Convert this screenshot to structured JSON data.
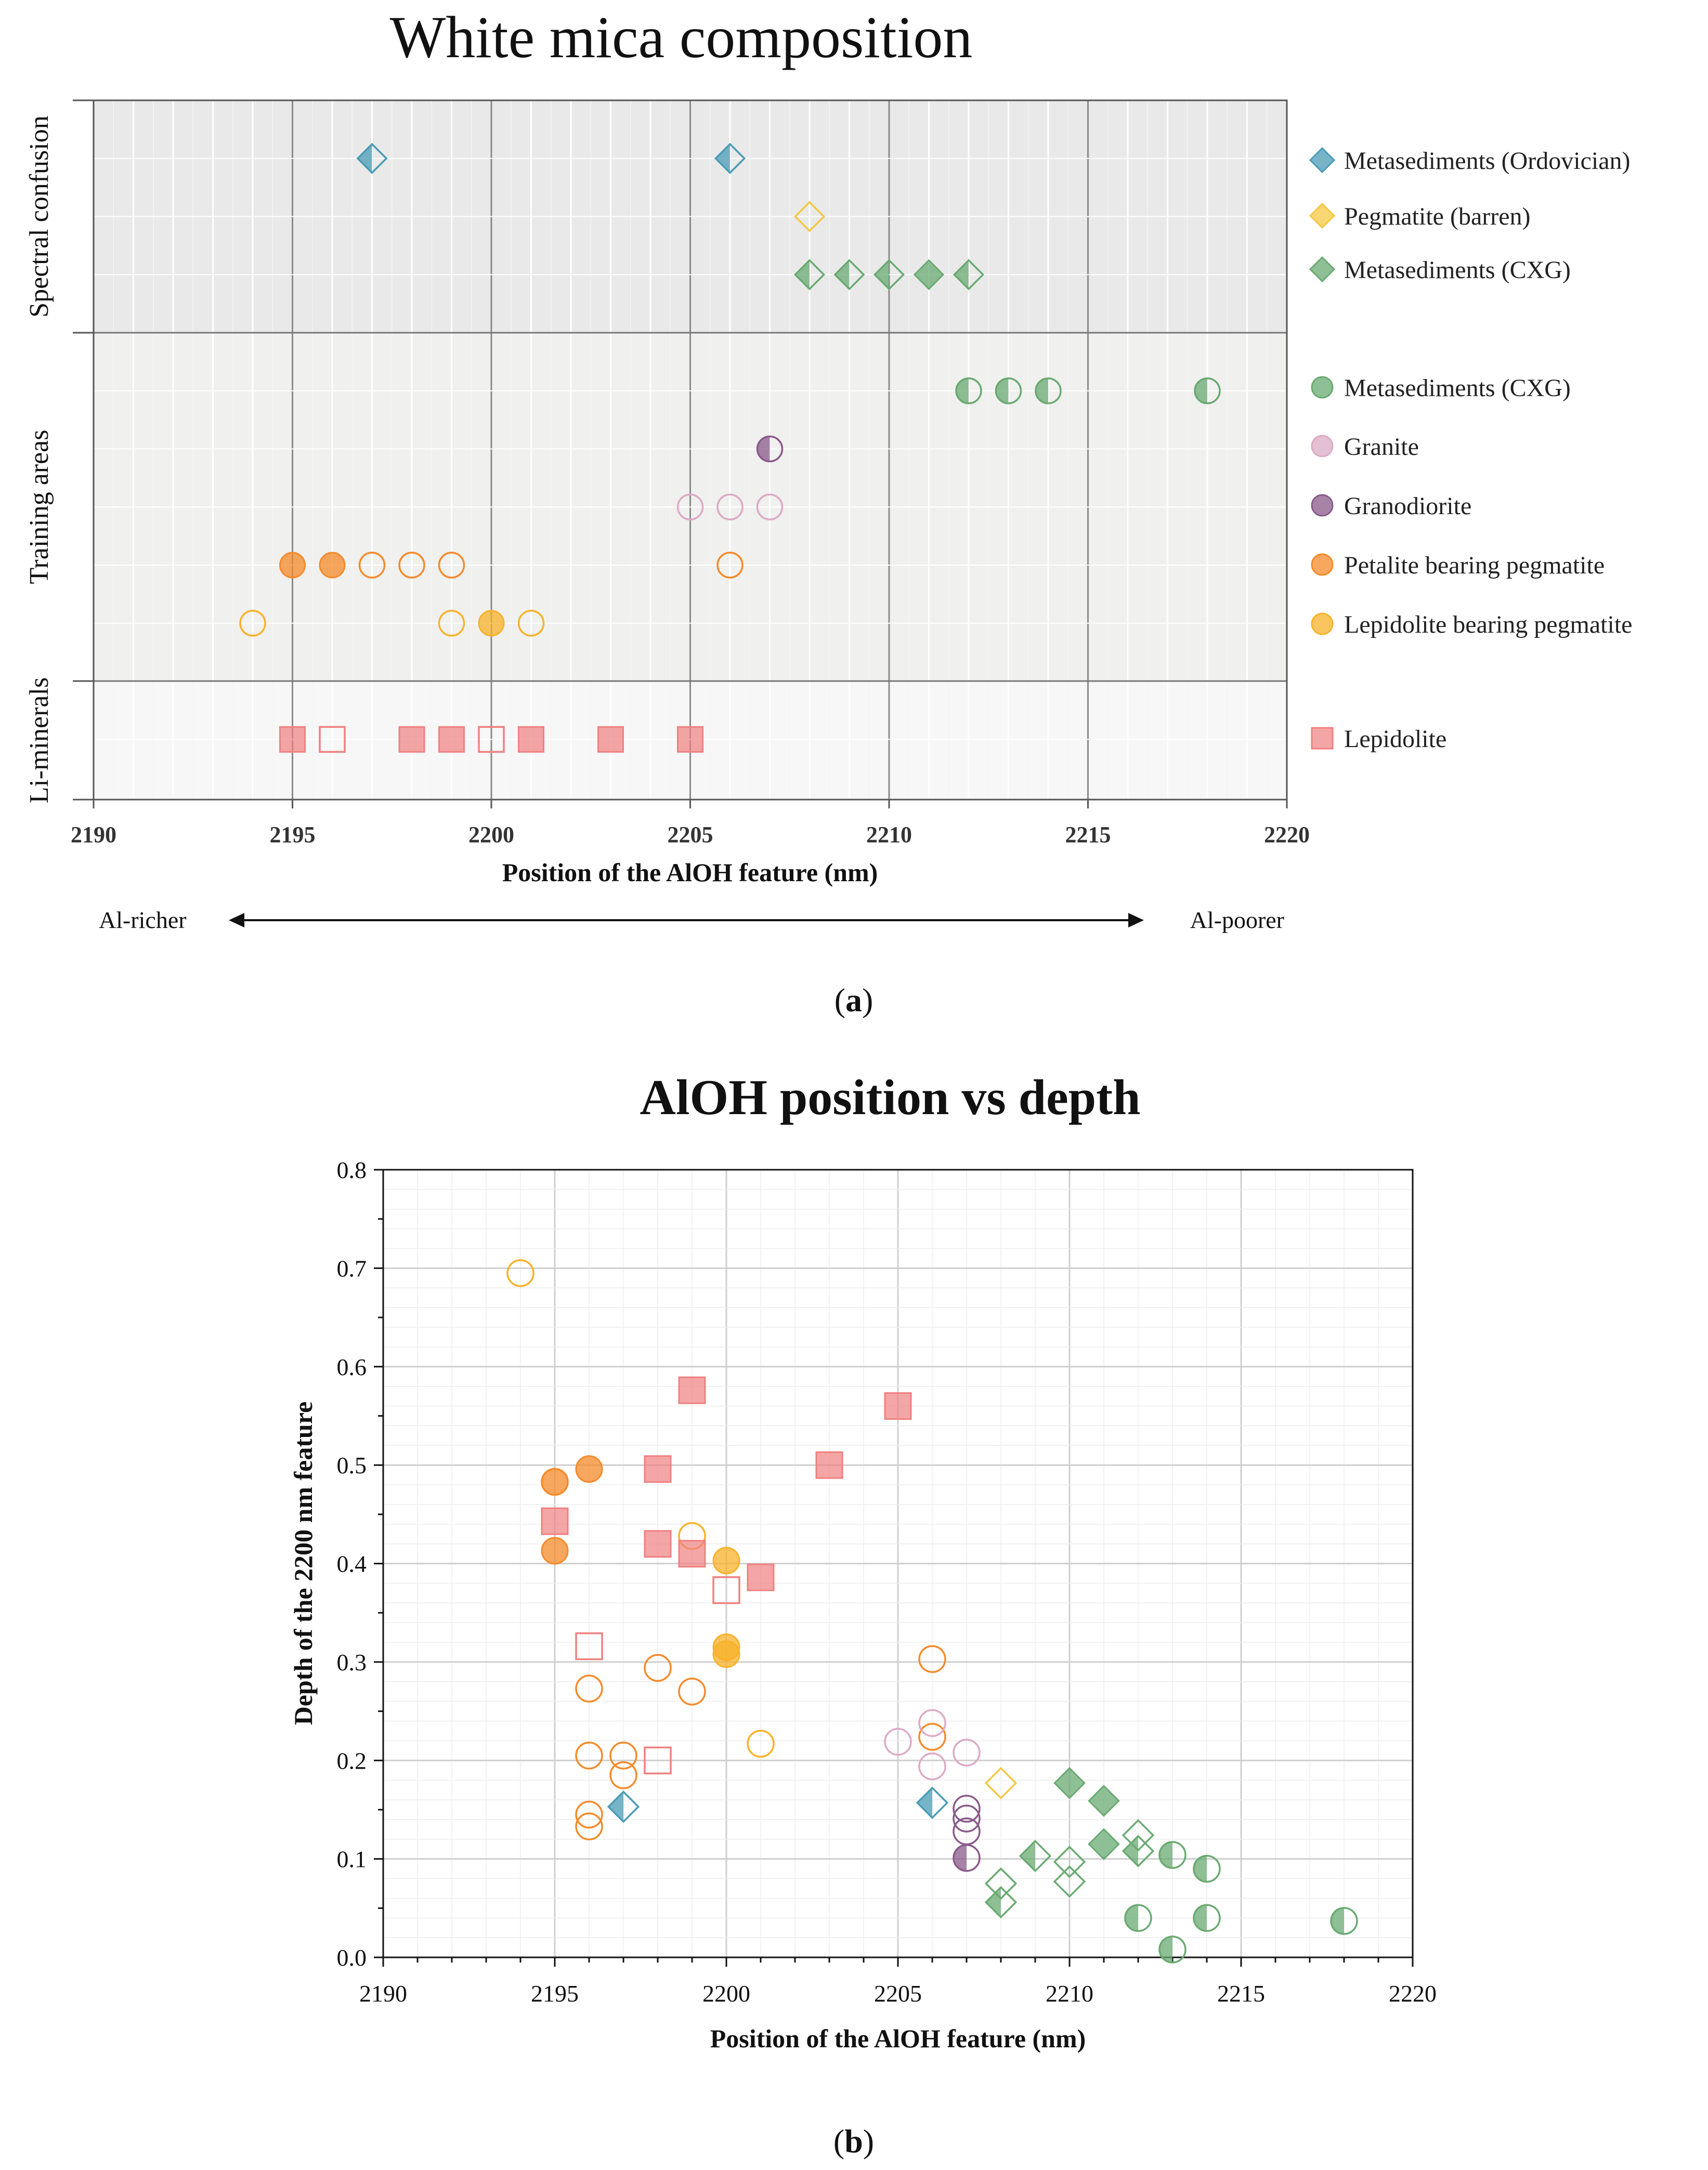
{
  "panel_a": {
    "title": "White mica composition",
    "panel_label_prefix": "(",
    "panel_label": "a",
    "panel_label_suffix": ")",
    "arrow_left": "Al-richer",
    "arrow_right": "Al-poorer"
  },
  "panel_b": {
    "title": "AlOH position vs depth",
    "panel_label_prefix": "(",
    "panel_label": "b",
    "panel_label_suffix": ")"
  },
  "styles": {
    "Metasediments (Ordovician)": {
      "color": "#4a9bb5",
      "marker": "diamond"
    },
    "Pegmatite (barren)": {
      "color": "#f5c842",
      "marker": "diamond"
    },
    "Metasediments (CXG) diamond": {
      "color": "#6aaa72",
      "marker": "diamond"
    },
    "Metasediments (CXG) circle": {
      "color": "#6aaa72",
      "marker": "circle"
    },
    "Granite": {
      "color": "#dcaac4",
      "marker": "circle"
    },
    "Granodiorite": {
      "color": "#8a5a8a",
      "marker": "circle"
    },
    "Petalite bearing pegmatite": {
      "color": "#f58a2a",
      "marker": "circle"
    },
    "Lepidolite bearing pegmatite": {
      "color": "#f8b22a",
      "marker": "circle"
    },
    "Lepidolite": {
      "color": "#f08080",
      "marker": "square"
    }
  },
  "chart_data": [
    {
      "type": "scatter",
      "title": "White mica composition",
      "xlabel": "Position of the AlOH feature (nm)",
      "ylabel_groups": [
        "Spectral confusion",
        "Training areas",
        "Li-minerals"
      ],
      "xlim": [
        2190,
        2220
      ],
      "xticks": [
        "2190",
        "2195",
        "2200",
        "2205",
        "2210",
        "2215",
        "2220"
      ],
      "legend": [
        {
          "label": "Metasediments (Ordovician)",
          "style": "Metasediments (Ordovician)"
        },
        {
          "label": "Pegmatite (barren)",
          "style": "Pegmatite (barren)"
        },
        {
          "label": "Metasediments (CXG)",
          "style": "Metasediments (CXG) diamond"
        },
        {
          "label": "Metasediments (CXG)",
          "style": "Metasediments (CXG) circle"
        },
        {
          "label": "Granite",
          "style": "Granite"
        },
        {
          "label": "Granodiorite",
          "style": "Granodiorite"
        },
        {
          "label": "Petalite bearing pegmatite",
          "style": "Petalite bearing pegmatite"
        },
        {
          "label": "Lepidolite bearing pegmatite",
          "style": "Lepidolite bearing pegmatite"
        },
        {
          "label": "Lepidolite",
          "style": "Lepidolite"
        }
      ],
      "series": [
        {
          "name": "Metasediments (Ordovician)",
          "style": "Metasediments (Ordovician)",
          "row": 1,
          "points": [
            {
              "x": 2197,
              "fill": "half"
            },
            {
              "x": 2206,
              "fill": "half"
            }
          ]
        },
        {
          "name": "Pegmatite (barren)",
          "style": "Pegmatite (barren)",
          "row": 2,
          "points": [
            {
              "x": 2208,
              "fill": "open"
            }
          ]
        },
        {
          "name": "Metasediments (CXG)",
          "style": "Metasediments (CXG) diamond",
          "row": 3,
          "points": [
            {
              "x": 2208,
              "fill": "half"
            },
            {
              "x": 2209,
              "fill": "half"
            },
            {
              "x": 2210,
              "fill": "half"
            },
            {
              "x": 2211,
              "fill": "full"
            },
            {
              "x": 2212,
              "fill": "half"
            }
          ]
        },
        {
          "name": "Metasediments (CXG)",
          "style": "Metasediments (CXG) circle",
          "row": 5,
          "points": [
            {
              "x": 2212,
              "fill": "half"
            },
            {
              "x": 2213,
              "fill": "half"
            },
            {
              "x": 2214,
              "fill": "half"
            },
            {
              "x": 2218,
              "fill": "half"
            }
          ]
        },
        {
          "name": "Granodiorite",
          "style": "Granodiorite",
          "row": 6,
          "points": [
            {
              "x": 2207,
              "fill": "half"
            }
          ]
        },
        {
          "name": "Granite",
          "style": "Granite",
          "row": 7,
          "points": [
            {
              "x": 2205,
              "fill": "open"
            },
            {
              "x": 2206,
              "fill": "open"
            },
            {
              "x": 2207,
              "fill": "open"
            }
          ]
        },
        {
          "name": "Petalite bearing pegmatite",
          "style": "Petalite bearing pegmatite",
          "row": 8,
          "points": [
            {
              "x": 2195,
              "fill": "full"
            },
            {
              "x": 2196,
              "fill": "full"
            },
            {
              "x": 2197,
              "fill": "open"
            },
            {
              "x": 2198,
              "fill": "open"
            },
            {
              "x": 2199,
              "fill": "open"
            },
            {
              "x": 2206,
              "fill": "open"
            }
          ]
        },
        {
          "name": "Lepidolite bearing pegmatite",
          "style": "Lepidolite bearing pegmatite",
          "row": 9,
          "points": [
            {
              "x": 2194,
              "fill": "open"
            },
            {
              "x": 2199,
              "fill": "open"
            },
            {
              "x": 2200,
              "fill": "full"
            },
            {
              "x": 2201,
              "fill": "open"
            }
          ]
        },
        {
          "name": "Lepidolite",
          "style": "Lepidolite",
          "row": 11,
          "points": [
            {
              "x": 2195,
              "fill": "full"
            },
            {
              "x": 2196,
              "fill": "open"
            },
            {
              "x": 2198,
              "fill": "full"
            },
            {
              "x": 2199,
              "fill": "full"
            },
            {
              "x": 2200,
              "fill": "open"
            },
            {
              "x": 2201,
              "fill": "full"
            },
            {
              "x": 2203,
              "fill": "full"
            },
            {
              "x": 2205,
              "fill": "full"
            }
          ]
        }
      ]
    },
    {
      "type": "scatter",
      "title": "AlOH position vs depth",
      "xlabel": "Position of the AlOH feature (nm)",
      "ylabel": "Depth of the 2200 nm feature",
      "xlim": [
        2190,
        2220
      ],
      "ylim": [
        0,
        0.8
      ],
      "xticks": [
        "2190",
        "2195",
        "2200",
        "2205",
        "2210",
        "2215",
        "2220"
      ],
      "yticks": [
        "0.0",
        "0.1",
        "0.2",
        "0.3",
        "0.4",
        "0.5",
        "0.6",
        "0.7",
        "0.8"
      ],
      "series": [
        {
          "name": "Lepidolite bearing pegmatite",
          "style": "Lepidolite bearing pegmatite",
          "points": [
            {
              "x": 2194,
              "y": 0.695,
              "fill": "open"
            },
            {
              "x": 2199,
              "y": 0.428,
              "fill": "open"
            },
            {
              "x": 2200,
              "y": 0.403,
              "fill": "full"
            },
            {
              "x": 2200,
              "y": 0.315,
              "fill": "full"
            },
            {
              "x": 2200,
              "y": 0.308,
              "fill": "full"
            },
            {
              "x": 2201,
              "y": 0.217,
              "fill": "open"
            },
            {
              "x": 2208,
              "y": 0.177,
              "fill": "open",
              "style": "Pegmatite (barren)"
            }
          ]
        },
        {
          "name": "Petalite bearing pegmatite",
          "style": "Petalite bearing pegmatite",
          "points": [
            {
              "x": 2195,
              "y": 0.483,
              "fill": "full"
            },
            {
              "x": 2195,
              "y": 0.483,
              "fill": "open"
            },
            {
              "x": 2195,
              "y": 0.413,
              "fill": "full"
            },
            {
              "x": 2196,
              "y": 0.496,
              "fill": "full"
            },
            {
              "x": 2196,
              "y": 0.273,
              "fill": "open"
            },
            {
              "x": 2196,
              "y": 0.205,
              "fill": "open"
            },
            {
              "x": 2196,
              "y": 0.145,
              "fill": "open"
            },
            {
              "x": 2196,
              "y": 0.133,
              "fill": "open"
            },
            {
              "x": 2197,
              "y": 0.205,
              "fill": "open"
            },
            {
              "x": 2197,
              "y": 0.185,
              "fill": "open"
            },
            {
              "x": 2198,
              "y": 0.294,
              "fill": "open"
            },
            {
              "x": 2199,
              "y": 0.27,
              "fill": "open"
            },
            {
              "x": 2206,
              "y": 0.303,
              "fill": "open"
            },
            {
              "x": 2206,
              "y": 0.224,
              "fill": "open"
            }
          ]
        },
        {
          "name": "Lepidolite",
          "style": "Lepidolite",
          "points": [
            {
              "x": 2195,
              "y": 0.443,
              "fill": "full"
            },
            {
              "x": 2196,
              "y": 0.316,
              "fill": "open"
            },
            {
              "x": 2198,
              "y": 0.496,
              "fill": "full"
            },
            {
              "x": 2198,
              "y": 0.42,
              "fill": "full"
            },
            {
              "x": 2198,
              "y": 0.2,
              "fill": "open"
            },
            {
              "x": 2199,
              "y": 0.576,
              "fill": "full"
            },
            {
              "x": 2199,
              "y": 0.41,
              "fill": "full"
            },
            {
              "x": 2200,
              "y": 0.373,
              "fill": "open"
            },
            {
              "x": 2201,
              "y": 0.386,
              "fill": "full"
            },
            {
              "x": 2203,
              "y": 0.5,
              "fill": "full"
            },
            {
              "x": 2205,
              "y": 0.56,
              "fill": "full"
            }
          ]
        },
        {
          "name": "Metasediments (Ordovician)",
          "style": "Metasediments (Ordovician)",
          "points": [
            {
              "x": 2197,
              "y": 0.153,
              "fill": "half"
            },
            {
              "x": 2206,
              "y": 0.157,
              "fill": "half"
            }
          ]
        },
        {
          "name": "Granite",
          "style": "Granite",
          "points": [
            {
              "x": 2205,
              "y": 0.219,
              "fill": "open"
            },
            {
              "x": 2206,
              "y": 0.238,
              "fill": "open"
            },
            {
              "x": 2206,
              "y": 0.194,
              "fill": "open"
            },
            {
              "x": 2207,
              "y": 0.208,
              "fill": "open"
            }
          ]
        },
        {
          "name": "Granodiorite",
          "style": "Granodiorite",
          "points": [
            {
              "x": 2207,
              "y": 0.151,
              "fill": "open"
            },
            {
              "x": 2207,
              "y": 0.141,
              "fill": "open"
            },
            {
              "x": 2207,
              "y": 0.128,
              "fill": "open"
            },
            {
              "x": 2207,
              "y": 0.101,
              "fill": "half"
            }
          ]
        },
        {
          "name": "Metasediments (CXG) spectral confusion",
          "style": "Metasediments (CXG) diamond",
          "points": [
            {
              "x": 2208,
              "y": 0.075,
              "fill": "open"
            },
            {
              "x": 2208,
              "y": 0.056,
              "fill": "half"
            },
            {
              "x": 2209,
              "y": 0.103,
              "fill": "half"
            },
            {
              "x": 2210,
              "y": 0.177,
              "fill": "full"
            },
            {
              "x": 2210,
              "y": 0.097,
              "fill": "open"
            },
            {
              "x": 2210,
              "y": 0.077,
              "fill": "open"
            },
            {
              "x": 2211,
              "y": 0.159,
              "fill": "full"
            },
            {
              "x": 2211,
              "y": 0.115,
              "fill": "full"
            },
            {
              "x": 2212,
              "y": 0.124,
              "fill": "open"
            },
            {
              "x": 2212,
              "y": 0.108,
              "fill": "half"
            }
          ]
        },
        {
          "name": "Metasediments (CXG) training",
          "style": "Metasediments (CXG) circle",
          "points": [
            {
              "x": 2212,
              "y": 0.04,
              "fill": "half"
            },
            {
              "x": 2213,
              "y": 0.104,
              "fill": "half"
            },
            {
              "x": 2213,
              "y": 0.008,
              "fill": "half"
            },
            {
              "x": 2214,
              "y": 0.09,
              "fill": "half"
            },
            {
              "x": 2214,
              "y": 0.04,
              "fill": "half"
            },
            {
              "x": 2218,
              "y": 0.037,
              "fill": "half"
            }
          ]
        }
      ]
    }
  ]
}
